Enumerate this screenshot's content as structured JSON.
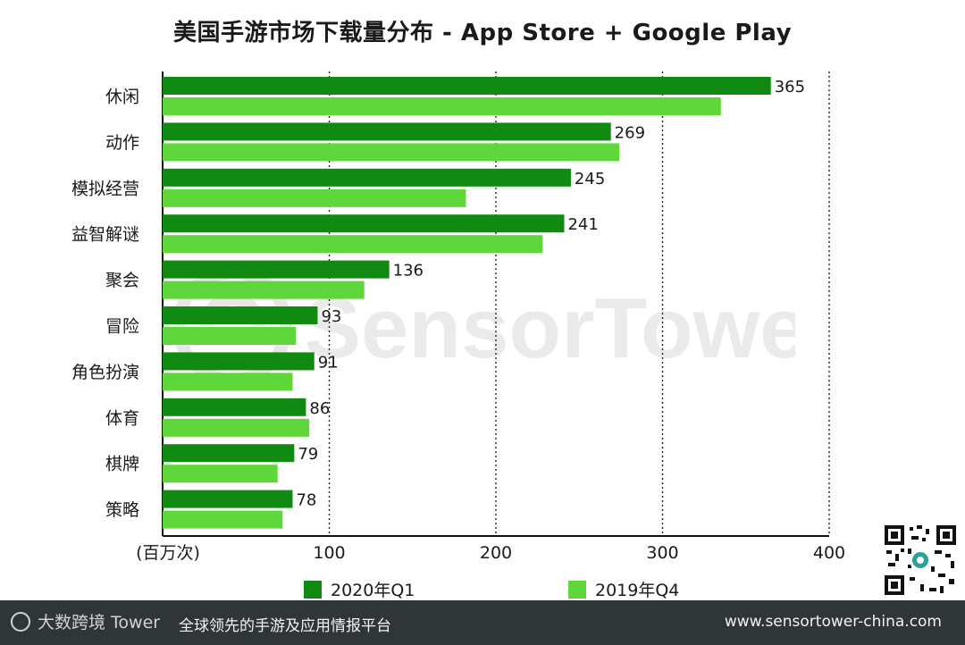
{
  "title": "美国手游市场下载量分布 - App Store + Google Play",
  "unit_label": "(百万次)",
  "watermark_text": "SensorTower",
  "footer": {
    "logo_text": "大数跨境 Tower",
    "slogan": "全球领先的手游及应用情报平台",
    "url": "www.sensortower-china.com"
  },
  "colors": {
    "q1_2020": "#108a10",
    "q4_2019": "#5fd63a",
    "background": "#ffffff",
    "footer_bg": "#303538"
  },
  "chart_data": {
    "type": "bar",
    "orientation": "horizontal",
    "title": "美国手游市场下载量分布 - App Store + Google Play",
    "xlabel": "(百万次)",
    "categories": [
      "休闲",
      "动作",
      "模拟经营",
      "益智解谜",
      "聚会",
      "冒险",
      "角色扮演",
      "体育",
      "棋牌",
      "策略"
    ],
    "series": [
      {
        "name": "2020年Q1",
        "values": [
          365,
          269,
          245,
          241,
          136,
          93,
          91,
          86,
          79,
          78
        ],
        "color": "#108a10",
        "labels": [
          "365",
          "269",
          "245",
          "241",
          "136",
          "93",
          "91",
          "86",
          "79",
          "78"
        ]
      },
      {
        "name": "2019年Q4",
        "values": [
          335,
          274,
          182,
          228,
          121,
          80,
          78,
          88,
          69,
          72
        ],
        "color": "#5fd63a"
      }
    ],
    "xlim": [
      0,
      400
    ],
    "xticks": [
      "100",
      "200",
      "300",
      "400"
    ],
    "grid": "vertical dotted",
    "legend": "bottom"
  }
}
